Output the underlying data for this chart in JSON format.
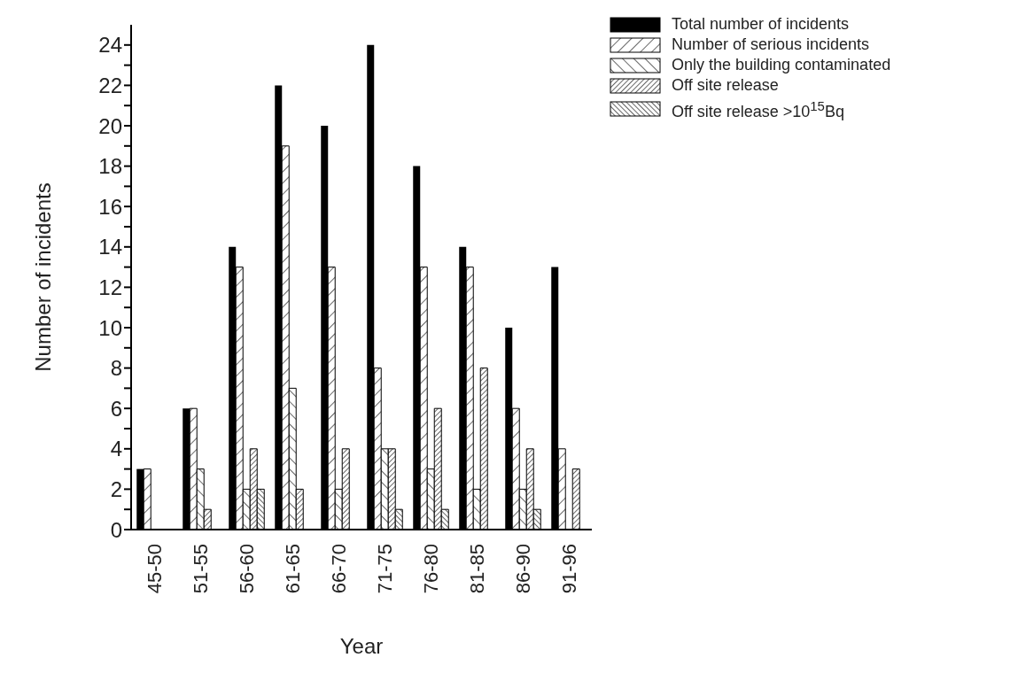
{
  "chart_data": {
    "type": "bar",
    "xlabel": "Year",
    "ylabel": "Number of incidents",
    "categories": [
      "45-50",
      "51-55",
      "56-60",
      "61-65",
      "66-70",
      "71-75",
      "76-80",
      "81-85",
      "86-90",
      "91-96"
    ],
    "series": [
      {
        "name": "Total number of incidents",
        "color": "#000000",
        "values": [
          3,
          6,
          14,
          22,
          20,
          24,
          18,
          14,
          10,
          13
        ]
      },
      {
        "name": "Number of serious incidents",
        "color": "#000000",
        "values": [
          3,
          6,
          13,
          19,
          13,
          8,
          13,
          13,
          6,
          4
        ]
      },
      {
        "name": "Only the building contaminated",
        "color": "#000000",
        "values": [
          0,
          3,
          2,
          7,
          2,
          4,
          3,
          2,
          2,
          0
        ]
      },
      {
        "name": "Off site release",
        "color": "#000000",
        "values": [
          0,
          1,
          4,
          2,
          4,
          4,
          6,
          8,
          4,
          3
        ]
      },
      {
        "name": "Off site release >10$^{15}$Bq",
        "color": "#000000",
        "values": [
          0,
          0,
          2,
          0,
          0,
          1,
          1,
          0,
          1,
          0
        ]
      }
    ],
    "ylim": [
      0,
      25
    ],
    "yticks": [
      0,
      {
        "value": 1,
        "label": null
      },
      2,
      {
        "value": 3,
        "label": null
      },
      4,
      {
        "value": 5,
        "label": null
      },
      6,
      {
        "value": 7,
        "label": null
      },
      8,
      {
        "value": 9,
        "label": null
      },
      10,
      {
        "value": 11,
        "label": null
      },
      12,
      {
        "value": 13,
        "label": null
      },
      14,
      {
        "value": 15,
        "label": null
      },
      16,
      {
        "value": 17,
        "label": null
      },
      18,
      {
        "value": 19,
        "label": null
      },
      20,
      {
        "value": 21,
        "label": null
      },
      22,
      {
        "value": 23,
        "label": null
      },
      24
    ],
    "grid": false,
    "legend": "top right"
  }
}
